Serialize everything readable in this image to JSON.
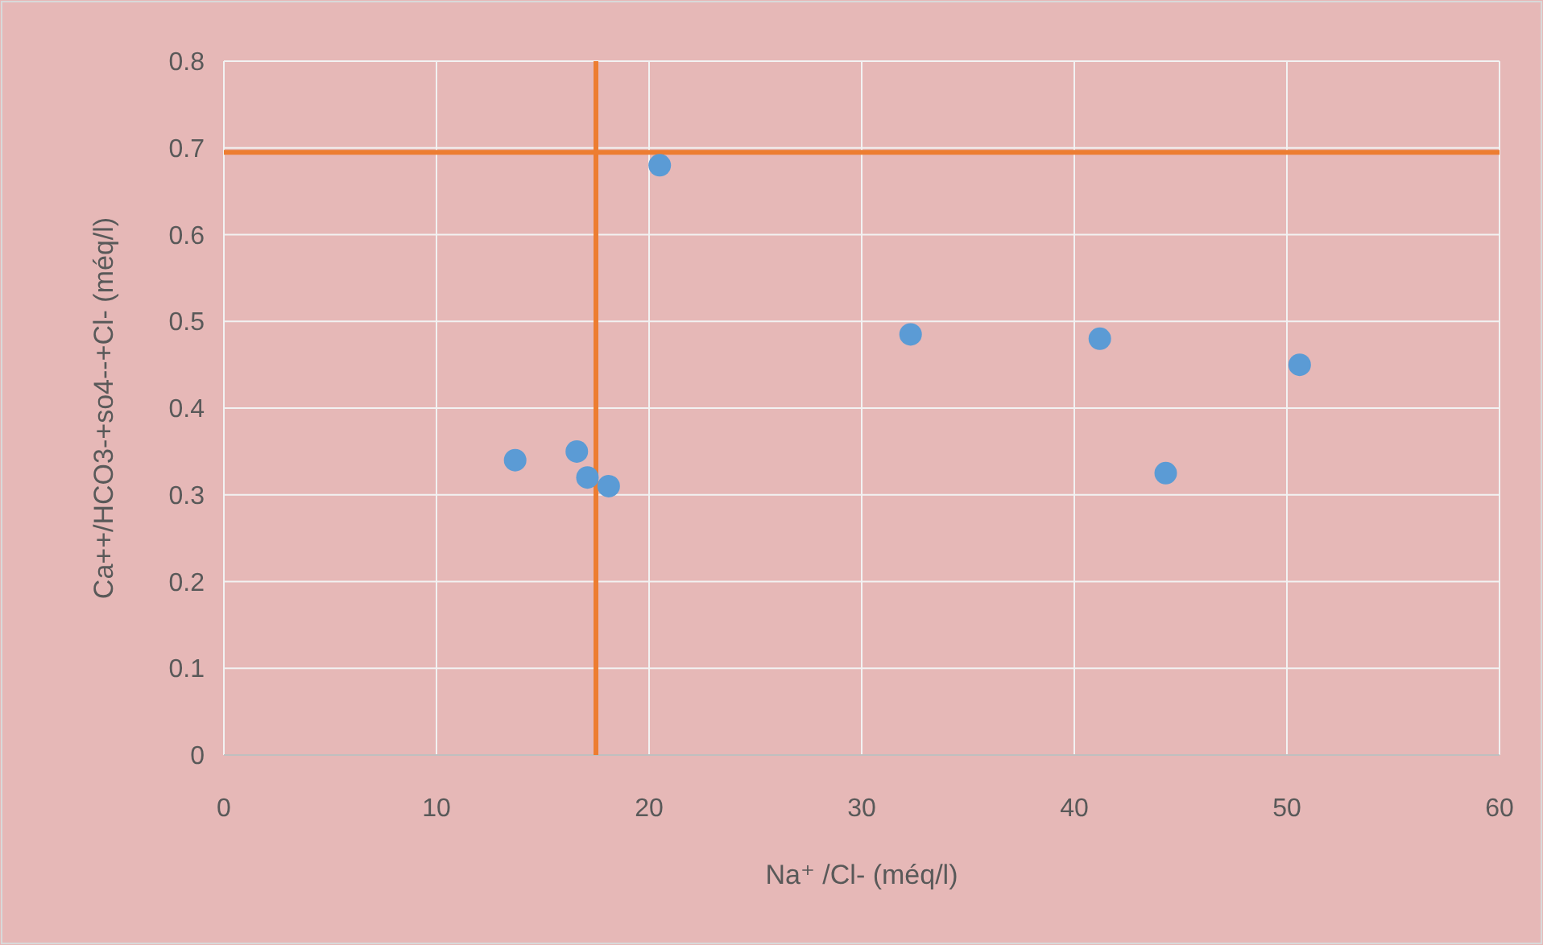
{
  "chart_data": {
    "type": "scatter",
    "xlabel": "Na⁺ /Cl-  (méq/l)",
    "ylabel": "Ca++/HCO3-+so4--+Cl-  (méq/l)",
    "x": [
      13.7,
      16.6,
      17.1,
      18.1,
      20.5,
      32.3,
      41.2,
      44.3,
      50.6
    ],
    "series": [
      {
        "color": "#5b9bd5",
        "values": [
          0.34,
          0.35,
          0.32,
          0.31,
          0.68,
          0.485,
          0.48,
          0.325,
          0.45
        ]
      }
    ],
    "xlim": [
      0,
      60
    ],
    "xticks": [
      0,
      10,
      20,
      30,
      40,
      50,
      60
    ],
    "ylim": [
      0,
      0.8
    ],
    "yticks": [
      0,
      0.1,
      0.2,
      0.3,
      0.4,
      0.5,
      0.6,
      0.7,
      0.8
    ],
    "grid": true,
    "marker": "circle",
    "ref_lines": [
      {
        "axis": "y",
        "value": 0.695,
        "color": "#ed7d31"
      },
      {
        "axis": "x",
        "value": 17.5,
        "color": "#ed7d31"
      }
    ]
  }
}
